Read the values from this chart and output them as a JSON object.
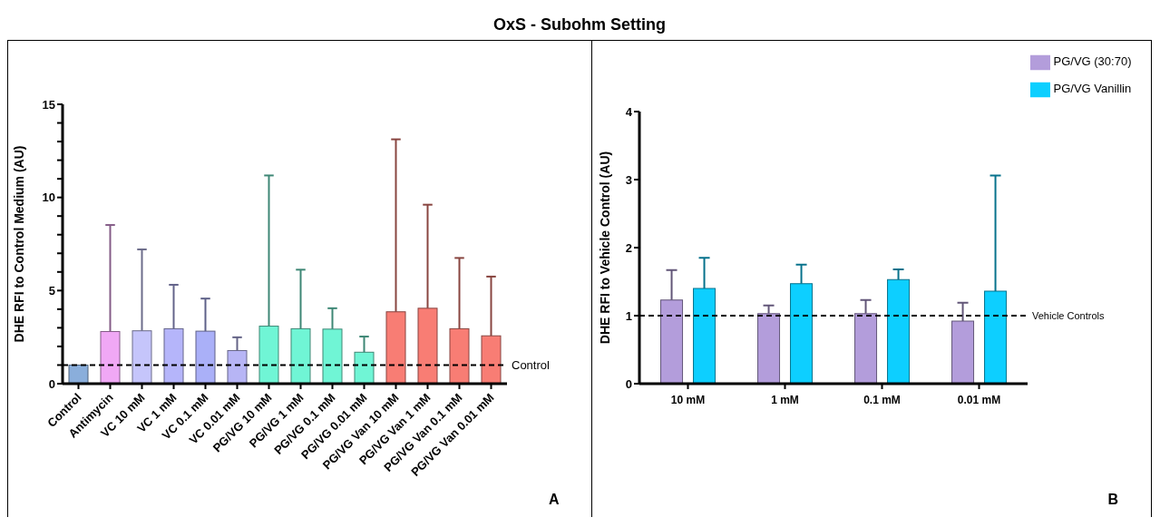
{
  "chart_data": [
    {
      "type": "bar",
      "title": "OxS - Subohm Setting",
      "ylabel": "DHE  RFI to Control Medium (AU)",
      "categories": [
        "Control",
        "Antimycin",
        "VC 10 mM",
        "VC 1 mM",
        "VC 0.1 mM",
        "VC 0.01 mM",
        "PG/VG 10 mM",
        "PG/VG 1 mM",
        "PG/VG 0.1 mM",
        "PG/VG 0.01 mM",
        "PG/VG Van 10 mM",
        "PG/VG Van 1 mM",
        "PG/VG Van 0.1 mM",
        "PG/VG Van 0.01 mM"
      ],
      "values": [
        1.0,
        2.8,
        2.84,
        2.95,
        2.82,
        1.78,
        3.09,
        2.95,
        2.93,
        1.69,
        3.86,
        4.05,
        2.95,
        2.57
      ],
      "errors": [
        null,
        [
          2.8,
          8.52
        ],
        [
          2.84,
          7.21
        ],
        [
          2.95,
          5.31
        ],
        [
          2.82,
          4.57
        ],
        [
          1.78,
          2.49
        ],
        [
          3.09,
          11.18
        ],
        [
          2.95,
          6.12
        ],
        [
          2.93,
          4.05
        ],
        [
          1.69,
          2.53
        ],
        [
          3.86,
          13.12
        ],
        [
          4.05,
          9.61
        ],
        [
          2.95,
          6.75
        ],
        [
          2.57,
          5.75
        ]
      ],
      "colors": [
        "#8aaedb",
        "#f0a8f5",
        "#c5c5fb",
        "#b5b5fa",
        "#aab0f8",
        "#b7b5f5",
        "#70f5d5",
        "#70f5d5",
        "#70f5d5",
        "#70f5d5",
        "#f87d74",
        "#f87d74",
        "#f87d74",
        "#f87d74"
      ],
      "ylim": [
        0,
        15
      ],
      "yticks": [
        0,
        {
          "value": 1,
          "label": null
        },
        {
          "value": 2,
          "label": null
        },
        {
          "value": 3,
          "label": null
        },
        {
          "value": 4,
          "label": null
        },
        5,
        {
          "value": 6,
          "label": null
        },
        {
          "value": 7,
          "label": null
        },
        {
          "value": 8,
          "label": null
        },
        {
          "value": 9,
          "label": null
        },
        10,
        {
          "value": 11,
          "label": null
        },
        {
          "value": 12,
          "label": null
        },
        {
          "value": 13,
          "label": null
        },
        {
          "value": 14,
          "label": null
        },
        15
      ],
      "ref_lines": [
        {
          "axis": "y",
          "value": 1,
          "label": "Control",
          "line_style": "dashed",
          "color": "#000000"
        }
      ],
      "annotations": [
        "A"
      ]
    },
    {
      "type": "bar",
      "ylabel": "DHE  RFI to Vehicle Control (AU)",
      "categories": [
        "10 mM",
        "1 mM",
        "0.1 mM",
        "0.01 mM"
      ],
      "series": [
        {
          "name": "PG/VG (30:70)",
          "color": "#b39ddb",
          "values": [
            1.23,
            1.03,
            1.03,
            0.92
          ],
          "errors": [
            [
              1.23,
              1.67
            ],
            [
              1.03,
              1.15
            ],
            [
              1.03,
              1.23
            ],
            [
              0.92,
              1.19
            ]
          ]
        },
        {
          "name": "PG/VG Vanillin",
          "color": "#0dcfff",
          "values": [
            1.4,
            1.47,
            1.53,
            1.36
          ],
          "errors": [
            [
              1.4,
              1.85
            ],
            [
              1.47,
              1.75
            ],
            [
              1.53,
              1.68
            ],
            [
              1.36,
              3.06
            ]
          ]
        }
      ],
      "ylim": [
        0,
        4
      ],
      "yticks": [
        0,
        1,
        2,
        3,
        4
      ],
      "legend": "top right",
      "ref_lines": [
        {
          "axis": "y",
          "value": 1,
          "label": "Vehicle Controls",
          "line_style": "dashed",
          "color": "#000000"
        }
      ],
      "annotations": [
        "B"
      ]
    }
  ]
}
